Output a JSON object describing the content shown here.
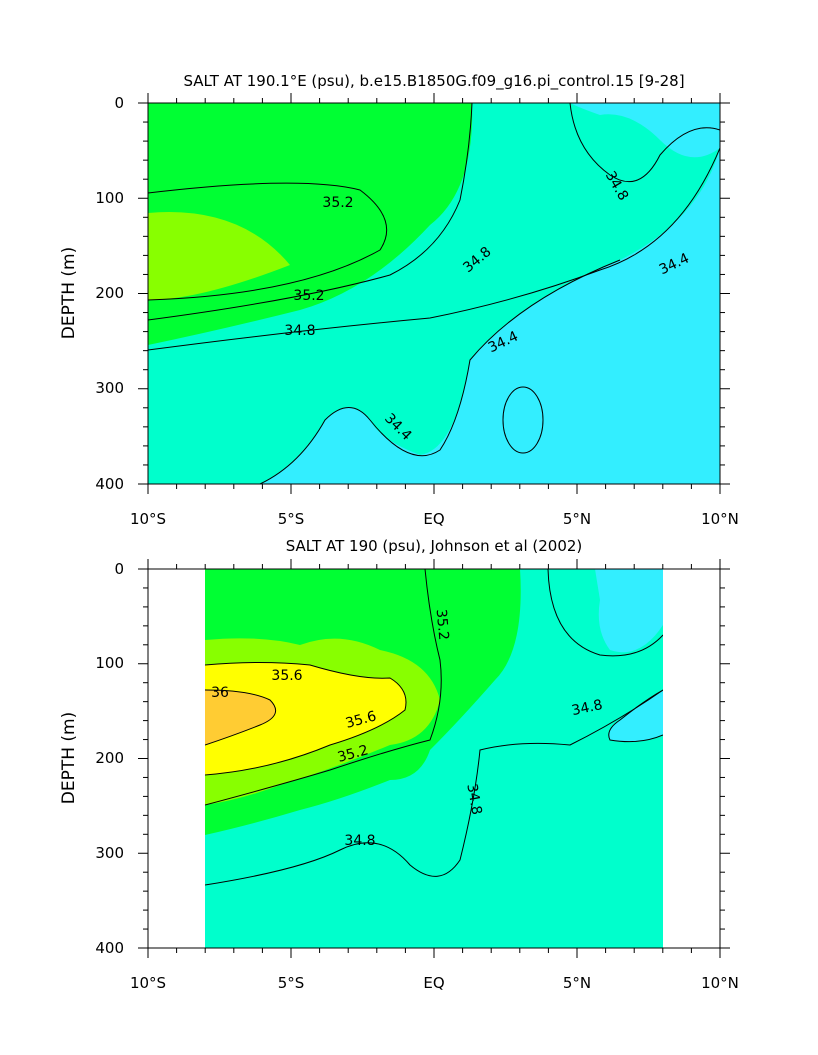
{
  "chart_data": [
    {
      "type": "contour",
      "title": "SALT AT 190.1°E (psu), b.e15.B1850G.f09_g16.pi_control.15 [9-28]",
      "xlabel": "",
      "ylabel": "DEPTH (m)",
      "x_ticks": [
        "10°S",
        "5°S",
        "EQ",
        "5°N",
        "10°N"
      ],
      "y_ticks": [
        "0",
        "100",
        "200",
        "300",
        "400"
      ],
      "xlim": [
        -10,
        10
      ],
      "ylim": [
        400,
        0
      ],
      "data_range_x": [
        -10,
        10
      ],
      "contour_interval": 0.2,
      "contour_labels": [
        "35.2",
        "35.2",
        "34.8",
        "34.8",
        "34.8",
        "34.4",
        "34.4",
        "34.4"
      ],
      "fill_colors": {
        "34.2-34.6": "#33eeff",
        "34.6-35.0": "#00ffcc",
        "35.0-35.4": "#00ff33",
        "35.4-35.8": "#88ff00"
      }
    },
    {
      "type": "contour",
      "title": "SALT AT 190 (psu), Johnson et al (2002)",
      "xlabel": "",
      "ylabel": "DEPTH (m)",
      "x_ticks": [
        "10°S",
        "5°S",
        "EQ",
        "5°N",
        "10°N"
      ],
      "y_ticks": [
        "0",
        "100",
        "200",
        "300",
        "400"
      ],
      "xlim": [
        -10,
        10
      ],
      "ylim": [
        400,
        0
      ],
      "data_range_x": [
        -8,
        8
      ],
      "contour_interval": 0.2,
      "contour_labels": [
        "35.2",
        "35.6",
        "36",
        "35.6",
        "35.2",
        "34.8",
        "34.8",
        "34.8"
      ],
      "fill_colors": {
        "34.4-34.6": "#33eeff",
        "34.6-35.0": "#00ffcc",
        "35.0-35.4": "#00ff33",
        "35.4-35.6": "#88ff00",
        "35.6-36.0": "#ffff00",
        "36.0-36.2": "#ffcc33"
      }
    }
  ]
}
